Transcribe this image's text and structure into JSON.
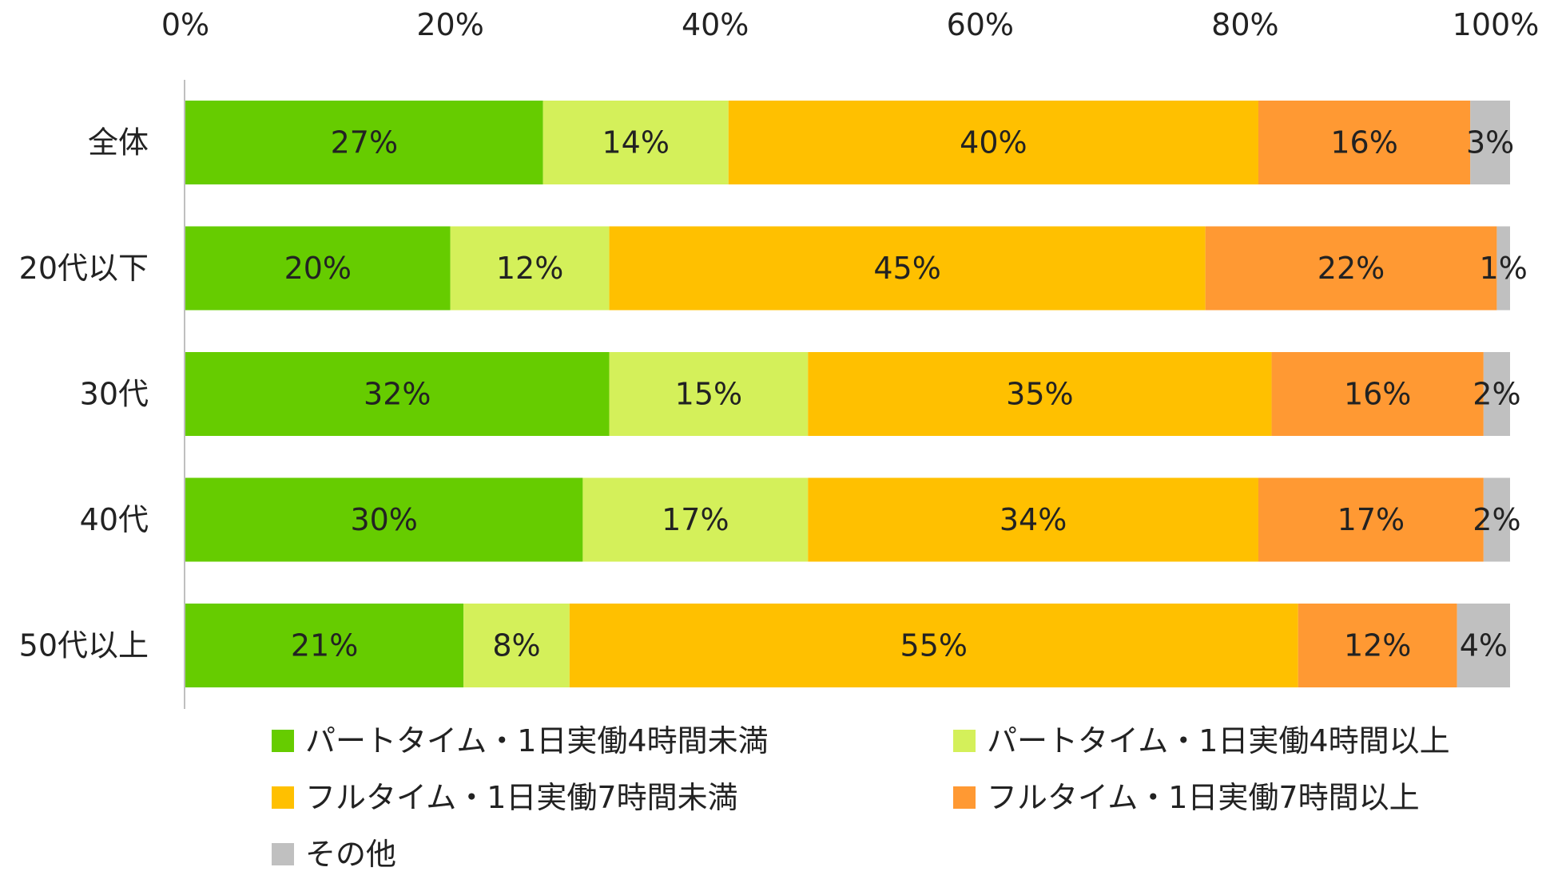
{
  "chart_data": {
    "type": "bar",
    "orientation": "horizontal",
    "stacked": true,
    "title": "",
    "xlabel": "",
    "ylabel": "",
    "xlim": [
      0,
      100
    ],
    "ticks": [
      "0%",
      "20%",
      "40%",
      "60%",
      "80%",
      "100%"
    ],
    "grid": false,
    "legend_position": "bottom",
    "categories": [
      "全体",
      "20代以下",
      "30代",
      "40代",
      "50代以上"
    ],
    "series": [
      {
        "name": "パートタイム・1日実働4時間未満",
        "color": "#66CC00",
        "values": [
          27,
          20,
          32,
          30,
          21
        ],
        "labels": [
          "27%",
          "20%",
          "32%",
          "30%",
          "21%"
        ]
      },
      {
        "name": "パートタイム・1日実働4時間以上",
        "color": "#D4F05A",
        "values": [
          14,
          12,
          15,
          17,
          8
        ],
        "labels": [
          "14%",
          "12%",
          "15%",
          "17%",
          "8%"
        ]
      },
      {
        "name": "フルタイム・1日実働7時間未満",
        "color": "#FFC000",
        "values": [
          40,
          45,
          35,
          34,
          55
        ],
        "labels": [
          "40%",
          "45%",
          "35%",
          "34%",
          "55%"
        ]
      },
      {
        "name": "フルタイム・1日実働7時間以上",
        "color": "#FF9933",
        "values": [
          16,
          22,
          16,
          17,
          12
        ],
        "labels": [
          "16%",
          "22%",
          "16%",
          "17%",
          "12%"
        ]
      },
      {
        "name": "その他",
        "color": "#C0C0C0",
        "values": [
          3,
          1,
          2,
          2,
          4
        ],
        "labels": [
          "3%",
          "1%",
          "2%",
          "2%",
          "4%"
        ]
      }
    ]
  }
}
